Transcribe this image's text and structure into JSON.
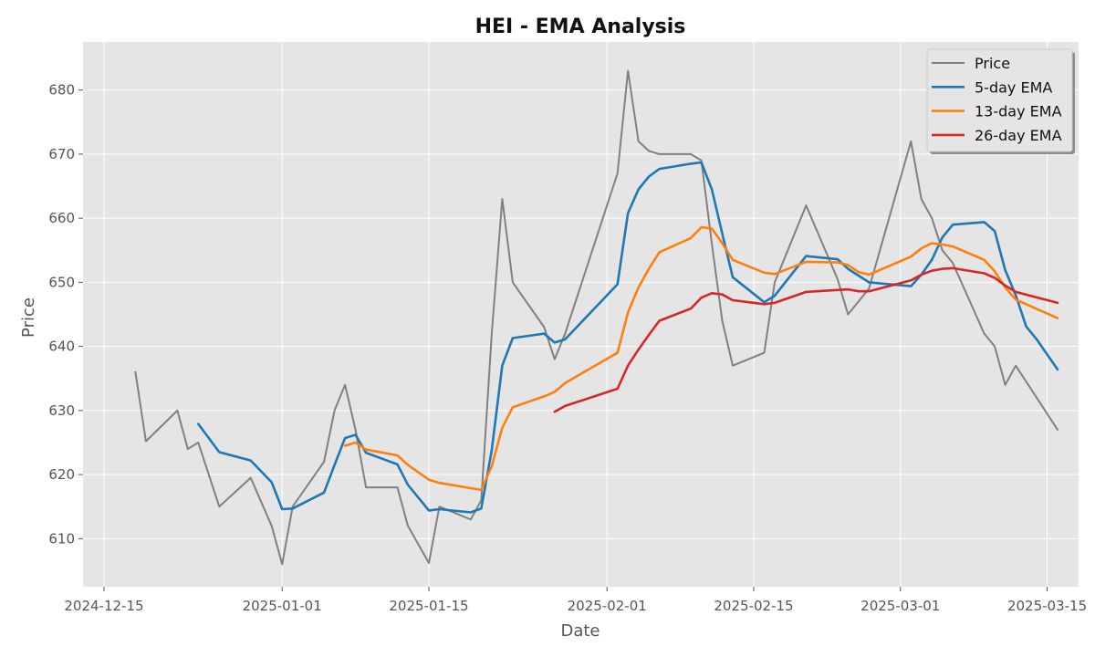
{
  "chart_data": {
    "type": "line",
    "title": "HEI - EMA Analysis",
    "xlabel": "Date",
    "ylabel": "Price",
    "xlim": [
      "2024-12-13",
      "2025-03-18"
    ],
    "ylim": [
      602.5,
      687.5
    ],
    "x_ticks": [
      "2024-12-15",
      "2025-01-01",
      "2025-01-15",
      "2025-02-01",
      "2025-02-15",
      "2025-03-01",
      "2025-03-15"
    ],
    "y_ticks": [
      610,
      620,
      630,
      640,
      650,
      660,
      670,
      680
    ],
    "grid": true,
    "legend_position": "top-right",
    "series": [
      {
        "name": "Price",
        "color": "#808080",
        "points": [
          [
            "2024-12-18",
            636
          ],
          [
            "2024-12-19",
            625.2
          ],
          [
            "2024-12-22",
            630
          ],
          [
            "2024-12-23",
            624
          ],
          [
            "2024-12-24",
            625
          ],
          [
            "2024-12-26",
            615
          ],
          [
            "2024-12-29",
            619.5
          ],
          [
            "2024-12-31",
            612
          ],
          [
            "2025-01-01",
            606
          ],
          [
            "2025-01-02",
            615
          ],
          [
            "2025-01-05",
            622
          ],
          [
            "2025-01-06",
            630
          ],
          [
            "2025-01-07",
            634
          ],
          [
            "2025-01-08",
            627
          ],
          [
            "2025-01-09",
            618
          ],
          [
            "2025-01-12",
            618
          ],
          [
            "2025-01-13",
            612
          ],
          [
            "2025-01-15",
            606.2
          ],
          [
            "2025-01-16",
            615
          ],
          [
            "2025-01-19",
            613
          ],
          [
            "2025-01-20",
            616
          ],
          [
            "2025-01-21",
            642
          ],
          [
            "2025-01-22",
            663
          ],
          [
            "2025-01-23",
            650
          ],
          [
            "2025-01-26",
            643
          ],
          [
            "2025-01-27",
            638
          ],
          [
            "2025-01-28",
            642
          ],
          [
            "2025-02-02",
            667
          ],
          [
            "2025-02-03",
            683
          ],
          [
            "2025-02-04",
            672
          ],
          [
            "2025-02-05",
            670.5
          ],
          [
            "2025-02-06",
            670
          ],
          [
            "2025-02-09",
            670
          ],
          [
            "2025-02-10",
            669
          ],
          [
            "2025-02-11",
            656
          ],
          [
            "2025-02-12",
            644
          ],
          [
            "2025-02-13",
            637
          ],
          [
            "2025-02-16",
            639
          ],
          [
            "2025-02-17",
            650
          ],
          [
            "2025-02-20",
            662
          ],
          [
            "2025-02-23",
            650.5
          ],
          [
            "2025-02-24",
            645
          ],
          [
            "2025-02-26",
            649
          ],
          [
            "2025-03-02",
            672
          ],
          [
            "2025-03-03",
            663
          ],
          [
            "2025-03-04",
            660
          ],
          [
            "2025-03-05",
            655
          ],
          [
            "2025-03-06",
            653
          ],
          [
            "2025-03-09",
            642
          ],
          [
            "2025-03-10",
            640
          ],
          [
            "2025-03-11",
            634
          ],
          [
            "2025-03-12",
            637
          ],
          [
            "2025-03-16",
            627
          ]
        ]
      },
      {
        "name": "5-day EMA",
        "color": "#1f77b4",
        "points": [
          [
            "2024-12-24",
            627.9
          ],
          [
            "2024-12-26",
            623.5
          ],
          [
            "2024-12-29",
            622.2
          ],
          [
            "2024-12-31",
            618.8
          ],
          [
            "2025-01-01",
            614.6
          ],
          [
            "2025-01-02",
            614.7
          ],
          [
            "2025-01-05",
            617.2
          ],
          [
            "2025-01-06",
            621.5
          ],
          [
            "2025-01-07",
            625.7
          ],
          [
            "2025-01-08",
            626.2
          ],
          [
            "2025-01-09",
            623.4
          ],
          [
            "2025-01-12",
            621.6
          ],
          [
            "2025-01-13",
            618.4
          ],
          [
            "2025-01-15",
            614.4
          ],
          [
            "2025-01-16",
            614.6
          ],
          [
            "2025-01-19",
            614.1
          ],
          [
            "2025-01-20",
            614.7
          ],
          [
            "2025-01-21",
            623.8
          ],
          [
            "2025-01-22",
            637
          ],
          [
            "2025-01-23",
            641.3
          ],
          [
            "2025-01-26",
            642
          ],
          [
            "2025-01-27",
            640.6
          ],
          [
            "2025-01-28",
            641.1
          ],
          [
            "2025-02-02",
            649.7
          ],
          [
            "2025-02-03",
            660.8
          ],
          [
            "2025-02-04",
            664.5
          ],
          [
            "2025-02-05",
            666.5
          ],
          [
            "2025-02-06",
            667.7
          ],
          [
            "2025-02-09",
            668.5
          ],
          [
            "2025-02-10",
            668.7
          ],
          [
            "2025-02-11",
            664.5
          ],
          [
            "2025-02-12",
            657.6
          ],
          [
            "2025-02-13",
            650.8
          ],
          [
            "2025-02-16",
            646.9
          ],
          [
            "2025-02-17",
            647.9
          ],
          [
            "2025-02-20",
            654.1
          ],
          [
            "2025-02-23",
            653.6
          ],
          [
            "2025-02-24",
            652.1
          ],
          [
            "2025-02-26",
            650
          ],
          [
            "2025-03-02",
            649.4
          ],
          [
            "2025-03-03",
            651.2
          ],
          [
            "2025-03-04",
            653.5
          ],
          [
            "2025-03-05",
            657
          ],
          [
            "2025-03-06",
            659
          ],
          [
            "2025-03-09",
            659.4
          ],
          [
            "2025-03-10",
            658
          ],
          [
            "2025-03-11",
            651.9
          ],
          [
            "2025-03-12",
            648
          ],
          [
            "2025-03-13",
            643.1
          ],
          [
            "2025-03-14",
            641.1
          ],
          [
            "2025-03-16",
            636.4
          ]
        ]
      },
      {
        "name": "13-day EMA",
        "color": "#ff7f0e",
        "points": [
          [
            "2025-01-07",
            624.5
          ],
          [
            "2025-01-08",
            625
          ],
          [
            "2025-01-09",
            623.9
          ],
          [
            "2025-01-12",
            623
          ],
          [
            "2025-01-13",
            621.5
          ],
          [
            "2025-01-15",
            619.2
          ],
          [
            "2025-01-16",
            618.7
          ],
          [
            "2025-01-20",
            617.6
          ],
          [
            "2025-01-21",
            621.3
          ],
          [
            "2025-01-22",
            627.3
          ],
          [
            "2025-01-23",
            630.5
          ],
          [
            "2025-01-26",
            632.2
          ],
          [
            "2025-01-27",
            632.9
          ],
          [
            "2025-01-28",
            634.3
          ],
          [
            "2025-02-02",
            639
          ],
          [
            "2025-02-03",
            645.3
          ],
          [
            "2025-02-04",
            649.2
          ],
          [
            "2025-02-05",
            652.1
          ],
          [
            "2025-02-06",
            654.7
          ],
          [
            "2025-02-09",
            656.9
          ],
          [
            "2025-02-10",
            658.6
          ],
          [
            "2025-02-11",
            658.4
          ],
          [
            "2025-02-12",
            656.1
          ],
          [
            "2025-02-13",
            653.5
          ],
          [
            "2025-02-16",
            651.5
          ],
          [
            "2025-02-17",
            651.3
          ],
          [
            "2025-02-20",
            653.2
          ],
          [
            "2025-02-23",
            653.1
          ],
          [
            "2025-02-24",
            652.7
          ],
          [
            "2025-02-25",
            651.6
          ],
          [
            "2025-02-26",
            651.2
          ],
          [
            "2025-03-02",
            654
          ],
          [
            "2025-03-03",
            655.3
          ],
          [
            "2025-03-04",
            656.1
          ],
          [
            "2025-03-05",
            655.9
          ],
          [
            "2025-03-06",
            655.6
          ],
          [
            "2025-03-09",
            653.5
          ],
          [
            "2025-03-10",
            651.7
          ],
          [
            "2025-03-11",
            649.2
          ],
          [
            "2025-03-12",
            647.3
          ],
          [
            "2025-03-16",
            644.4
          ]
        ]
      },
      {
        "name": "26-day EMA",
        "color": "#d62728",
        "points": [
          [
            "2025-01-27",
            629.8
          ],
          [
            "2025-01-28",
            630.7
          ],
          [
            "2025-02-02",
            633.4
          ],
          [
            "2025-02-03",
            637
          ],
          [
            "2025-02-04",
            639.5
          ],
          [
            "2025-02-05",
            641.8
          ],
          [
            "2025-02-06",
            644
          ],
          [
            "2025-02-09",
            645.9
          ],
          [
            "2025-02-10",
            647.6
          ],
          [
            "2025-02-11",
            648.3
          ],
          [
            "2025-02-12",
            648.1
          ],
          [
            "2025-02-13",
            647.2
          ],
          [
            "2025-02-16",
            646.6
          ],
          [
            "2025-02-17",
            646.8
          ],
          [
            "2025-02-20",
            648.5
          ],
          [
            "2025-02-23",
            648.8
          ],
          [
            "2025-02-24",
            648.9
          ],
          [
            "2025-02-25",
            648.6
          ],
          [
            "2025-02-26",
            648.6
          ],
          [
            "2025-03-02",
            650.3
          ],
          [
            "2025-03-03",
            651.2
          ],
          [
            "2025-03-04",
            651.8
          ],
          [
            "2025-03-05",
            652.1
          ],
          [
            "2025-03-06",
            652.2
          ],
          [
            "2025-03-09",
            651.4
          ],
          [
            "2025-03-10",
            650.7
          ],
          [
            "2025-03-11",
            649.5
          ],
          [
            "2025-03-12",
            648.5
          ],
          [
            "2025-03-16",
            646.8
          ]
        ]
      }
    ]
  }
}
